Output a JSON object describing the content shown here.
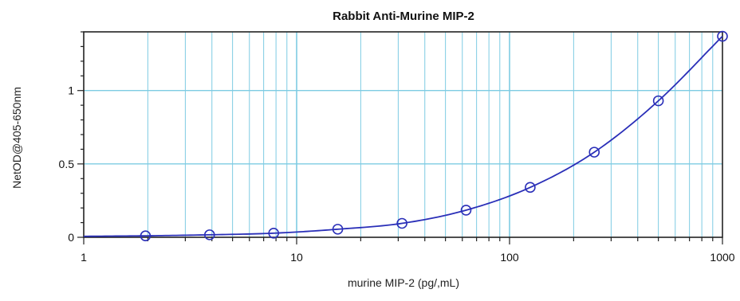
{
  "chart_data": {
    "type": "scatter",
    "title": "Rabbit Anti-Murine MIP-2",
    "xlabel": "murine MIP-2 (pg/,mL)",
    "ylabel": "NetOD@405-650nm",
    "x_scale": "log",
    "xlim": [
      1,
      1000
    ],
    "ylim": [
      0,
      1.4
    ],
    "x_ticks": [
      {
        "value": 1,
        "label": "1"
      },
      {
        "value": 10,
        "label": "10"
      },
      {
        "value": 100,
        "label": "100"
      },
      {
        "value": 1000,
        "label": "1000"
      }
    ],
    "y_ticks": [
      {
        "value": 0,
        "label": "0"
      },
      {
        "value": 0.5,
        "label": "0.5"
      },
      {
        "value": 1,
        "label": "1"
      }
    ],
    "grid": true,
    "series": [
      {
        "points": [
          {
            "x": 1.95,
            "y": 0.01
          },
          {
            "x": 3.9,
            "y": 0.017
          },
          {
            "x": 7.8,
            "y": 0.028
          },
          {
            "x": 15.6,
            "y": 0.055
          },
          {
            "x": 31.25,
            "y": 0.095
          },
          {
            "x": 62.5,
            "y": 0.185
          },
          {
            "x": 125,
            "y": 0.34
          },
          {
            "x": 250,
            "y": 0.58
          },
          {
            "x": 500,
            "y": 0.93
          },
          {
            "x": 1000,
            "y": 1.37
          }
        ],
        "fit_line": true
      }
    ],
    "colors": {
      "series": "#2a2fb8",
      "grid": "#7ecbe3",
      "axis": "#222222",
      "background": "#ffffff"
    }
  }
}
